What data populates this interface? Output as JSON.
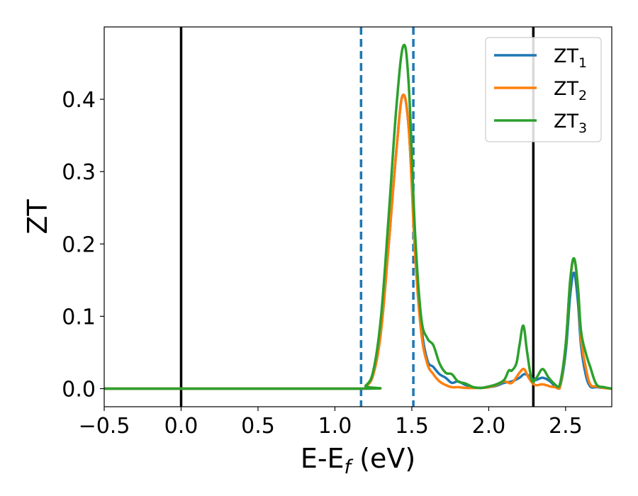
{
  "chart_data": {
    "type": "line",
    "xlabel": "E-E",
    "xlabel_sub": "f",
    "xlabel_unit": " (eV)",
    "ylabel": "ZT",
    "xlim": [
      -0.5,
      2.8
    ],
    "ylim": [
      -0.025,
      0.5
    ],
    "xticks": [
      -0.5,
      0.0,
      0.5,
      1.0,
      1.5,
      2.0,
      2.5
    ],
    "xtick_labels": [
      "−0.5",
      "0.0",
      "0.5",
      "1.0",
      "1.5",
      "2.0",
      "2.5"
    ],
    "yticks": [
      0.0,
      0.1,
      0.2,
      0.3,
      0.4
    ],
    "ytick_labels": [
      "0.0",
      "0.1",
      "0.2",
      "0.3",
      "0.4"
    ],
    "grid": false,
    "legend_position": "top-right",
    "vertical_lines": [
      {
        "x": 0.0,
        "style": "solid",
        "color": "#000000"
      },
      {
        "x": 2.29,
        "style": "solid",
        "color": "#000000"
      },
      {
        "x": 1.17,
        "style": "dashed",
        "color": "#1f77b4"
      },
      {
        "x": 1.51,
        "style": "dashed",
        "color": "#1f77b4"
      }
    ],
    "series": [
      {
        "name": "ZT",
        "subscript": "1",
        "color": "#1f77b4",
        "x": [
          -0.5,
          1.15,
          1.2,
          1.25,
          1.3,
          1.35,
          1.4,
          1.44,
          1.48,
          1.52,
          1.56,
          1.6,
          1.64,
          1.68,
          1.72,
          1.76,
          1.8,
          1.85,
          1.9,
          1.95,
          2.0,
          2.05,
          2.1,
          2.15,
          2.2,
          2.23,
          2.26,
          2.3,
          2.35,
          2.4,
          2.43,
          2.46,
          2.5,
          2.53,
          2.555,
          2.58,
          2.6,
          2.63,
          2.66,
          2.7,
          2.75,
          2.8
        ],
        "y": [
          0.0,
          0.0,
          0.003,
          0.02,
          0.08,
          0.2,
          0.33,
          0.405,
          0.36,
          0.2,
          0.09,
          0.04,
          0.03,
          0.02,
          0.015,
          0.008,
          0.01,
          0.005,
          0.002,
          0.001,
          0.002,
          0.004,
          0.008,
          0.01,
          0.015,
          0.02,
          0.018,
          0.012,
          0.015,
          0.01,
          0.003,
          0.0,
          0.05,
          0.13,
          0.16,
          0.12,
          0.06,
          0.02,
          0.003,
          0.002,
          0.001,
          0.0
        ]
      },
      {
        "name": "ZT",
        "subscript": "2",
        "color": "#ff7f0e",
        "x": [
          -0.5,
          1.15,
          1.2,
          1.25,
          1.3,
          1.35,
          1.4,
          1.44,
          1.48,
          1.52,
          1.56,
          1.6,
          1.64,
          1.68,
          1.72,
          1.76,
          1.8,
          1.85,
          1.9,
          1.95,
          2.0,
          2.05,
          2.1,
          2.15,
          2.2,
          2.23,
          2.26,
          2.3,
          2.35,
          2.4,
          2.43,
          2.46,
          2.5,
          2.53,
          2.555,
          2.58,
          2.6,
          2.63,
          2.66,
          2.7,
          2.75,
          2.8
        ],
        "y": [
          0.0,
          0.0,
          0.003,
          0.02,
          0.08,
          0.2,
          0.33,
          0.405,
          0.36,
          0.19,
          0.08,
          0.035,
          0.02,
          0.01,
          0.005,
          0.002,
          0.002,
          0.001,
          0.001,
          0.001,
          0.002,
          0.005,
          0.01,
          0.008,
          0.022,
          0.027,
          0.015,
          0.005,
          0.006,
          0.003,
          0.002,
          0.0,
          0.06,
          0.15,
          0.178,
          0.14,
          0.07,
          0.03,
          0.006,
          0.003,
          0.001,
          0.0
        ]
      },
      {
        "name": "ZT",
        "subscript": "3",
        "color": "#2ca02c",
        "x": [
          -0.5,
          1.15,
          1.2,
          1.25,
          1.3,
          1.35,
          1.4,
          1.445,
          1.48,
          1.52,
          1.56,
          1.6,
          1.64,
          1.68,
          1.72,
          1.76,
          1.8,
          1.85,
          1.9,
          1.95,
          2.0,
          2.05,
          2.1,
          2.13,
          2.15,
          2.18,
          2.2,
          2.225,
          2.25,
          2.28,
          2.31,
          2.35,
          2.39,
          2.43,
          2.46,
          2.5,
          2.53,
          2.555,
          2.58,
          2.6,
          2.63,
          2.66,
          2.7,
          2.75,
          2.8
        ],
        "y": [
          0.0,
          0.0,
          0.004,
          0.025,
          0.1,
          0.24,
          0.39,
          0.474,
          0.42,
          0.22,
          0.1,
          0.07,
          0.06,
          0.035,
          0.022,
          0.02,
          0.01,
          0.007,
          0.002,
          0.001,
          0.003,
          0.006,
          0.012,
          0.025,
          0.025,
          0.035,
          0.06,
          0.087,
          0.05,
          0.012,
          0.015,
          0.027,
          0.015,
          0.006,
          0.004,
          0.06,
          0.15,
          0.18,
          0.14,
          0.08,
          0.05,
          0.03,
          0.006,
          0.002,
          0.0
        ]
      }
    ]
  }
}
